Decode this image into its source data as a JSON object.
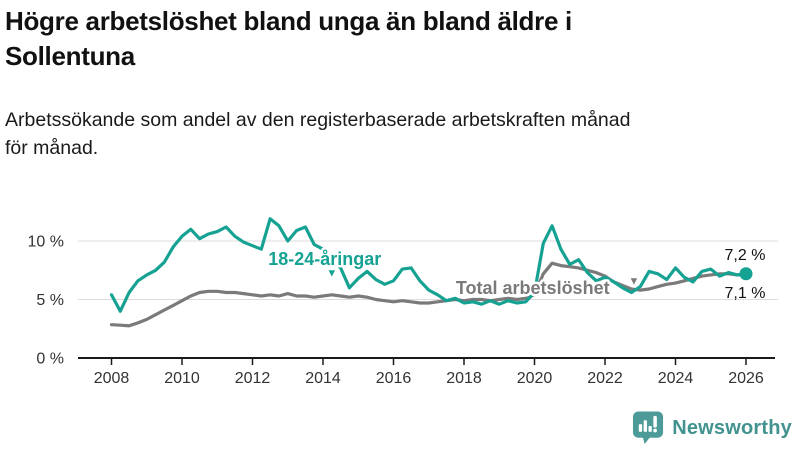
{
  "header": {
    "title_lines": [
      "Högre arbetslöshet bland unga än bland äldre i",
      "Sollentuna"
    ],
    "subtitle_lines": [
      "Arbetssökande som andel av den registerbaserade arbetskraften månad",
      "för månad."
    ]
  },
  "branding": {
    "logo_text": "Newsworthy",
    "logo_color": "#42938f"
  },
  "chart_data": {
    "type": "line",
    "title": "Högre arbetslöshet bland unga än bland äldre i Sollentuna",
    "subtitle": "Arbetssökande som andel av den registerbaserade arbetskraften månad för månad.",
    "xlabel": "",
    "ylabel": "",
    "legend_position": "inline-labels",
    "grid": "horizontal",
    "x_axis": {
      "range": [
        2007.6,
        2026.9
      ],
      "ticks": [
        2008,
        2010,
        2012,
        2014,
        2016,
        2018,
        2020,
        2022,
        2024,
        2026
      ]
    },
    "y_axis": {
      "range": [
        0,
        12.6
      ],
      "ticks": [
        {
          "value": 0,
          "label": "0 %"
        },
        {
          "value": 5,
          "label": "5 %"
        },
        {
          "value": 10,
          "label": "10 %"
        }
      ],
      "gridlines": [
        5,
        10
      ]
    },
    "x": [
      2008,
      2008.25,
      2008.5,
      2008.75,
      2009,
      2009.25,
      2009.5,
      2009.75,
      2010,
      2010.25,
      2010.5,
      2010.75,
      2011,
      2011.25,
      2011.5,
      2011.75,
      2012,
      2012.25,
      2012.5,
      2012.75,
      2013,
      2013.25,
      2013.5,
      2013.75,
      2014,
      2014.25,
      2014.5,
      2014.75,
      2015,
      2015.25,
      2015.5,
      2015.75,
      2016,
      2016.25,
      2016.5,
      2016.75,
      2017,
      2017.25,
      2017.5,
      2017.75,
      2018,
      2018.25,
      2018.5,
      2018.75,
      2019,
      2019.25,
      2019.5,
      2019.75,
      2020,
      2020.25,
      2020.5,
      2020.75,
      2021,
      2021.25,
      2021.5,
      2021.75,
      2022,
      2022.25,
      2022.5,
      2022.75,
      2023,
      2023.25,
      2023.5,
      2023.75,
      2024,
      2024.25,
      2024.5,
      2024.75,
      2025,
      2025.25,
      2025.5,
      2025.75,
      2026
    ],
    "series": [
      {
        "name": "Total arbetslöshet",
        "color": "#7a7a7a",
        "end_label": "7,1 %",
        "end_label_position": "below",
        "end_dot": false,
        "values": [
          2.85,
          2.8,
          2.75,
          3.0,
          3.3,
          3.7,
          4.1,
          4.5,
          4.9,
          5.3,
          5.6,
          5.7,
          5.7,
          5.6,
          5.6,
          5.5,
          5.4,
          5.3,
          5.4,
          5.3,
          5.5,
          5.3,
          5.3,
          5.2,
          5.3,
          5.4,
          5.3,
          5.2,
          5.3,
          5.2,
          5.0,
          4.9,
          4.8,
          4.9,
          4.8,
          4.7,
          4.7,
          4.8,
          4.9,
          5.0,
          4.9,
          5.0,
          5.0,
          4.9,
          5.0,
          5.1,
          5.0,
          5.1,
          5.4,
          7.2,
          8.1,
          7.9,
          7.8,
          7.7,
          7.5,
          7.3,
          7.0,
          6.5,
          6.2,
          5.9,
          5.8,
          5.9,
          6.1,
          6.3,
          6.4,
          6.6,
          6.8,
          7.0,
          7.1,
          7.2,
          7.2,
          7.1,
          7.1
        ]
      },
      {
        "name": "18-24-åringar",
        "color": "#16a293",
        "end_label": "7,2 %",
        "end_label_position": "above",
        "end_dot": true,
        "values": [
          5.4,
          4.0,
          5.6,
          6.6,
          7.1,
          7.5,
          8.2,
          9.5,
          10.4,
          11.0,
          10.2,
          10.6,
          10.8,
          11.2,
          10.4,
          9.9,
          9.6,
          9.3,
          11.9,
          11.3,
          10.0,
          10.9,
          11.2,
          9.7,
          9.3,
          8.4,
          7.7,
          6.0,
          6.8,
          7.4,
          6.7,
          6.3,
          6.6,
          7.6,
          7.7,
          6.6,
          5.8,
          5.4,
          4.9,
          5.1,
          4.7,
          4.8,
          4.6,
          4.9,
          4.6,
          4.9,
          4.7,
          4.8,
          5.6,
          9.8,
          11.3,
          9.3,
          8.0,
          8.4,
          7.3,
          6.6,
          6.9,
          6.5,
          6.0,
          5.6,
          6.1,
          7.4,
          7.2,
          6.7,
          7.7,
          6.9,
          6.5,
          7.4,
          7.6,
          7.0,
          7.3,
          7.1,
          7.2
        ]
      }
    ],
    "annotations": [
      {
        "text": "18-24-åringar",
        "x": 2014.05,
        "y": 7.95,
        "color": "#16a293",
        "size": 18,
        "bold": true,
        "halo": true,
        "anchor": "middle"
      },
      {
        "text": "▼",
        "x": 2014.25,
        "y": 6.95,
        "color": "#16a293",
        "size": 11,
        "bold": false,
        "halo": false,
        "anchor": "middle"
      },
      {
        "text": "Total arbetslöshet",
        "x": 2019.95,
        "y": 5.45,
        "color": "#7a7a7a",
        "size": 18,
        "bold": true,
        "halo": true,
        "anchor": "middle"
      },
      {
        "text": "▼",
        "x": 2022.82,
        "y": 6.3,
        "color": "#7a7a7a",
        "size": 11,
        "bold": false,
        "halo": false,
        "anchor": "middle"
      }
    ]
  }
}
